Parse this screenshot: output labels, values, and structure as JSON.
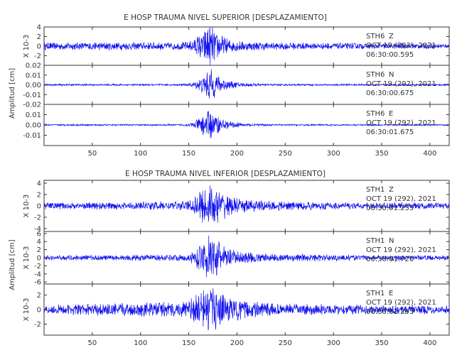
{
  "chart_data": [
    {
      "type": "line",
      "title": "E HOSP TRAUMA NIVEL SUPERIOR [DESPLAZAMIENTO]",
      "ylabel": "Amplitud [cm]",
      "xlim": [
        0,
        420
      ],
      "xticks": [
        "50",
        "100",
        "150",
        "200",
        "250",
        "300",
        "350",
        "400"
      ],
      "series": [
        {
          "name": "STH6 Z",
          "component": "Z",
          "date": "OCT 19 (292), 2021",
          "time": "06:30:00.595",
          "scale": "X 10-3",
          "ylim": [
            -4,
            4
          ],
          "yticks": [
            "4",
            "2",
            "0",
            "-2"
          ],
          "x": [
            0,
            20,
            40,
            60,
            80,
            100,
            120,
            140,
            150,
            155,
            160,
            165,
            170,
            172,
            175,
            180,
            185,
            190,
            200,
            210,
            220,
            240,
            260,
            280,
            300,
            320,
            340,
            360,
            380,
            400,
            420
          ],
          "env": [
            0.8,
            0.8,
            0.8,
            0.9,
            0.8,
            0.8,
            0.9,
            0.8,
            1.0,
            1.5,
            2.5,
            3.5,
            4.3,
            4.5,
            4.0,
            3.0,
            2.2,
            1.6,
            1.2,
            1.0,
            0.9,
            0.8,
            0.8,
            0.7,
            0.7,
            0.7,
            0.6,
            0.6,
            0.6,
            0.6,
            0.5
          ]
        },
        {
          "name": "STH6 N",
          "component": "N",
          "date": "OCT 19 (292), 2021",
          "time": "06:30:00.675",
          "scale": "",
          "ylim": [
            -0.02,
            0.02
          ],
          "yticks": [
            "0.02",
            "0.01",
            "0.00",
            "-0.01",
            "-0.02"
          ],
          "x": [
            0,
            20,
            40,
            60,
            80,
            100,
            120,
            140,
            150,
            155,
            160,
            165,
            170,
            172,
            175,
            180,
            185,
            190,
            200,
            210,
            220,
            240,
            260,
            280,
            300,
            320,
            340,
            360,
            380,
            400,
            420
          ],
          "env": [
            0.001,
            0.001,
            0.001,
            0.001,
            0.001,
            0.001,
            0.001,
            0.001,
            0.0015,
            0.003,
            0.006,
            0.01,
            0.016,
            0.018,
            0.015,
            0.01,
            0.007,
            0.005,
            0.003,
            0.002,
            0.0015,
            0.001,
            0.001,
            0.001,
            0.001,
            0.001,
            0.001,
            0.001,
            0.001,
            0.001,
            0.001
          ]
        },
        {
          "name": "STH6 E",
          "component": "E",
          "date": "OCT 19 (292), 2021",
          "time": "06:30:01.675",
          "scale": "",
          "ylim": [
            -0.02,
            0.02
          ],
          "yticks": [
            "0.01",
            "0.00",
            "-0.01"
          ],
          "x": [
            0,
            20,
            40,
            60,
            80,
            100,
            120,
            140,
            150,
            155,
            160,
            165,
            170,
            172,
            175,
            180,
            185,
            190,
            200,
            210,
            220,
            240,
            260,
            280,
            300,
            320,
            340,
            360,
            380,
            400,
            420
          ],
          "env": [
            0.0008,
            0.0008,
            0.0008,
            0.0008,
            0.0008,
            0.0008,
            0.0008,
            0.0008,
            0.0015,
            0.003,
            0.007,
            0.011,
            0.015,
            0.016,
            0.013,
            0.009,
            0.006,
            0.004,
            0.0025,
            0.0015,
            0.0012,
            0.0008,
            0.0008,
            0.0008,
            0.0008,
            0.0008,
            0.0008,
            0.0008,
            0.0008,
            0.0008,
            0.0008
          ]
        }
      ]
    },
    {
      "type": "line",
      "title": "E HOSP TRAUMA NIVEL INFERIOR [DESPLAZAMIENTO]",
      "ylabel": "Amplitud [cm]",
      "xlim": [
        0,
        420
      ],
      "xticks": [
        "50",
        "100",
        "150",
        "200",
        "250",
        "300",
        "350",
        "400"
      ],
      "series": [
        {
          "name": "STH1 Z",
          "component": "Z",
          "date": "OCT 19 (292), 2021",
          "time": "06:30:01.255",
          "scale": "X 10-3",
          "ylim": [
            -4.5,
            4.5
          ],
          "yticks": [
            "4",
            "2",
            "0",
            "-2",
            "-4"
          ],
          "x": [
            0,
            20,
            40,
            60,
            80,
            100,
            120,
            140,
            150,
            155,
            160,
            165,
            170,
            172,
            175,
            180,
            185,
            190,
            200,
            210,
            220,
            240,
            260,
            280,
            300,
            320,
            340,
            360,
            380,
            400,
            420
          ],
          "env": [
            0.6,
            0.6,
            0.6,
            0.7,
            0.6,
            0.7,
            0.8,
            0.8,
            1.0,
            1.5,
            2.5,
            3.5,
            4.2,
            4.3,
            4.0,
            3.2,
            2.6,
            2.0,
            1.4,
            1.2,
            1.0,
            0.9,
            0.8,
            0.7,
            0.7,
            0.6,
            0.6,
            0.6,
            0.6,
            0.6,
            0.5
          ]
        },
        {
          "name": "STH1 N",
          "component": "N",
          "date": "OCT 19 (292), 2021",
          "time": "06:30:01.720",
          "scale": "X 10-3",
          "ylim": [
            -6.5,
            6.5
          ],
          "yticks": [
            "6",
            "4",
            "2",
            "0",
            "-2",
            "-4",
            "-6"
          ],
          "x": [
            0,
            20,
            40,
            60,
            80,
            100,
            120,
            140,
            150,
            155,
            160,
            165,
            170,
            172,
            175,
            180,
            185,
            190,
            200,
            210,
            220,
            240,
            260,
            280,
            300,
            320,
            340,
            360,
            380,
            400,
            420
          ],
          "env": [
            0.6,
            0.6,
            0.7,
            0.7,
            0.7,
            0.8,
            0.8,
            0.8,
            1.0,
            1.8,
            3.0,
            4.5,
            5.8,
            6.0,
            5.5,
            4.5,
            3.5,
            2.8,
            2.0,
            1.5,
            1.2,
            1.0,
            0.9,
            0.9,
            0.8,
            0.7,
            0.7,
            0.7,
            0.6,
            0.6,
            0.6
          ]
        },
        {
          "name": "STH1 E",
          "component": "E",
          "date": "OCT 19 (292), 2021",
          "time": "06:30:01.295",
          "scale": "X 10-3",
          "ylim": [
            -3.5,
            3.5
          ],
          "yticks": [
            "2",
            "0",
            "-2"
          ],
          "x": [
            0,
            20,
            40,
            60,
            80,
            100,
            120,
            140,
            150,
            155,
            160,
            165,
            170,
            172,
            175,
            180,
            185,
            190,
            200,
            210,
            220,
            240,
            260,
            280,
            300,
            320,
            340,
            360,
            380,
            400,
            420
          ],
          "env": [
            0.6,
            0.7,
            0.8,
            0.8,
            0.9,
            1.0,
            1.1,
            1.0,
            1.3,
            1.8,
            2.3,
            2.8,
            3.2,
            3.3,
            3.0,
            2.6,
            2.2,
            1.9,
            1.5,
            1.3,
            1.1,
            0.9,
            0.8,
            0.8,
            0.7,
            0.7,
            0.6,
            0.6,
            0.6,
            0.6,
            0.6
          ]
        }
      ]
    }
  ]
}
